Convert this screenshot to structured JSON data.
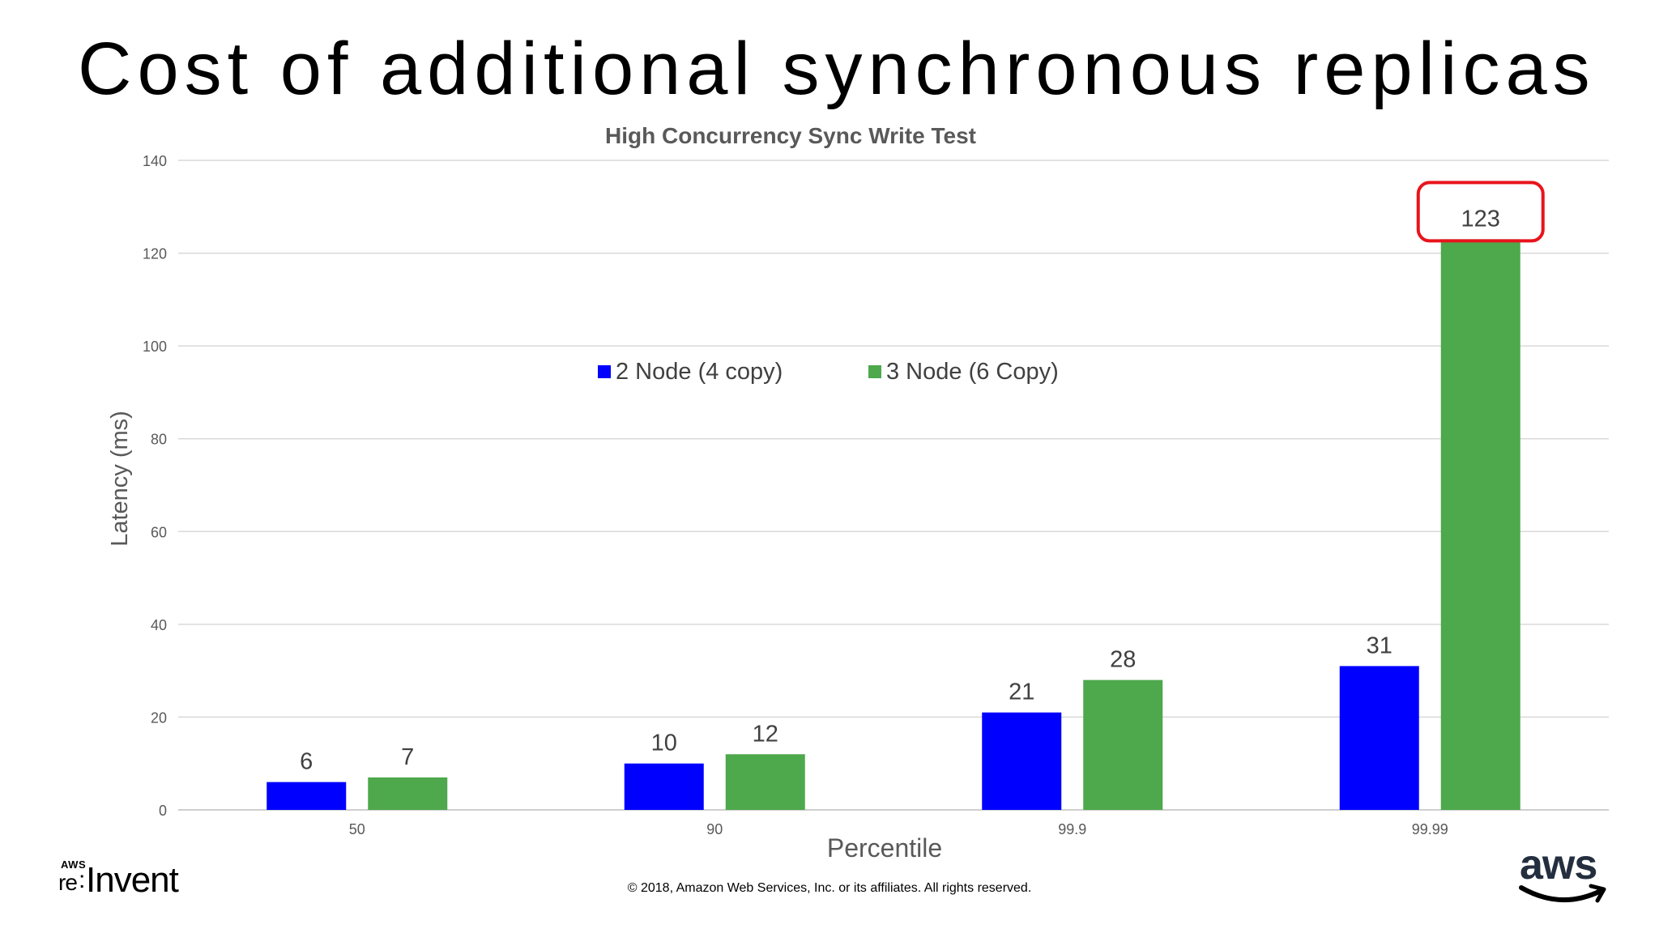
{
  "slide": {
    "title": "Cost of additional synchronous replicas",
    "copyright": "© 2018, Amazon Web Services, Inc. or its affiliates. All rights reserved.",
    "logo_left": {
      "small": "AWS",
      "re": "re",
      "invent": "Invent"
    },
    "logo_right": {
      "word": "aws",
      "icon": "amazon-smile-icon"
    }
  },
  "chart_data": {
    "type": "bar",
    "title": "High Concurrency Sync Write Test",
    "xlabel": "Percentile",
    "ylabel": "Latency (ms)",
    "categories": [
      "50",
      "90",
      "99.9",
      "99.99"
    ],
    "series": [
      {
        "name": "2 Node (4 copy)",
        "values": [
          6,
          10,
          21,
          31
        ],
        "color": "#0000ff"
      },
      {
        "name": "3 Node (6 Copy)",
        "values": [
          7,
          12,
          28,
          123
        ],
        "color": "#4ea84c"
      }
    ],
    "ylim": [
      0,
      140
    ],
    "yticks": [
      0,
      20,
      40,
      60,
      80,
      100,
      120,
      140
    ],
    "grid": true,
    "legend": "top-center",
    "highlight": {
      "series": 1,
      "category": 3,
      "color": "#e8141c"
    }
  }
}
